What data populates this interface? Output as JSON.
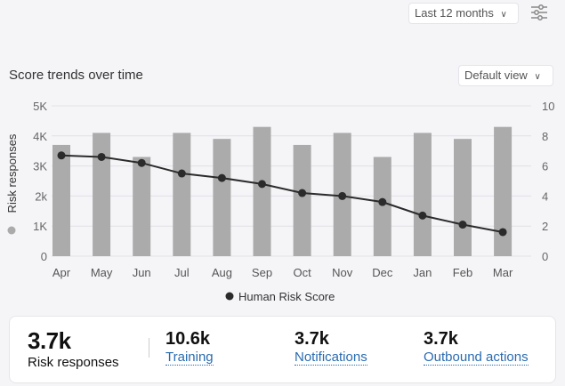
{
  "header": {
    "range_label": "Last 12 months",
    "filter_icon": "sliders-icon"
  },
  "chart_header": {
    "title": "Score trends over time",
    "view_label": "Default view"
  },
  "chart_data": {
    "type": "bar+line",
    "categories": [
      "Apr",
      "May",
      "Jun",
      "Jul",
      "Aug",
      "Sep",
      "Oct",
      "Nov",
      "Dec",
      "Jan",
      "Feb",
      "Mar"
    ],
    "series": [
      {
        "name": "Risk responses",
        "type": "bar",
        "axis": "left",
        "color": "#ababab",
        "values": [
          3700,
          4100,
          3300,
          4100,
          3900,
          4300,
          3700,
          4100,
          3300,
          4100,
          3900,
          4300
        ]
      },
      {
        "name": "Human Risk Score",
        "type": "line",
        "axis": "right",
        "color": "#2b2b2b",
        "values": [
          6.7,
          6.6,
          6.2,
          5.5,
          5.2,
          4.8,
          4.2,
          4.0,
          3.6,
          2.7,
          2.1,
          1.6
        ]
      }
    ],
    "ylabel": "Risk responses",
    "ylim": [
      0,
      5000
    ],
    "yticks": [
      "0",
      "1K",
      "2k",
      "3K",
      "4K",
      "5K"
    ],
    "y2lim": [
      0,
      10
    ],
    "y2ticks": [
      "0",
      "2",
      "4",
      "6",
      "8",
      "10"
    ],
    "legend": "bottom",
    "grid": true
  },
  "summary": {
    "main": {
      "value": "3.7k",
      "label": "Risk responses"
    },
    "items": [
      {
        "value": "10.6k",
        "label": "Training"
      },
      {
        "value": "3.7k",
        "label": "Notifications"
      },
      {
        "value": "3.7k",
        "label": "Outbound actions"
      }
    ]
  }
}
